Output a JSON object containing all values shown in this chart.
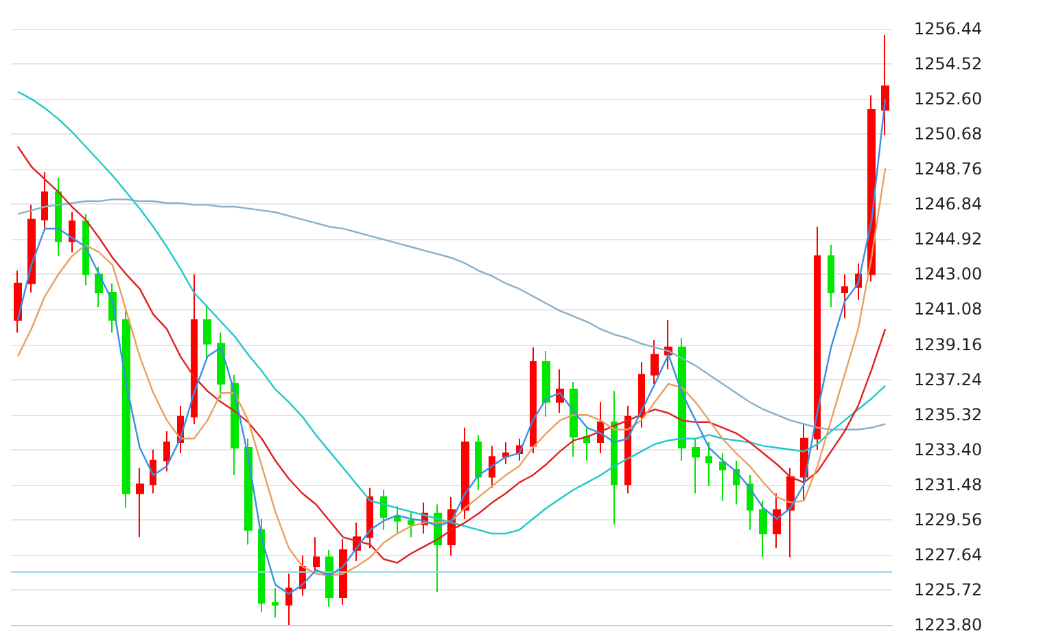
{
  "chart_data": {
    "type": "candlestick",
    "tick_labels": "y",
    "grid": "y",
    "marker": "none",
    "categories": [
      null,
      null,
      null,
      null,
      null,
      null,
      null,
      null,
      null,
      null,
      null,
      null,
      null,
      null,
      null,
      null,
      null,
      null,
      null,
      null,
      null,
      null,
      null,
      null,
      null,
      null,
      null,
      null,
      null,
      null,
      null,
      null,
      null,
      null,
      null,
      null,
      null,
      null,
      null,
      null,
      null,
      null,
      null,
      null,
      null,
      null,
      null,
      null,
      null,
      null,
      null,
      null,
      null,
      null,
      null,
      null,
      null,
      null,
      null,
      null,
      null,
      null,
      null,
      null,
      null
    ],
    "ylim": [
      1223.8,
      1256.44
    ],
    "yticks": [
      {
        "value": 1223.8,
        "label": "1223.80"
      },
      1225.72,
      1227.64,
      1229.56,
      1231.48,
      {
        "value": 1233.4,
        "label": "1233.40"
      },
      1235.32,
      1237.24,
      1239.16,
      1241.08,
      {
        "value": 1243,
        "label": "1243.00"
      },
      1244.92,
      1246.84,
      1248.76,
      1250.68,
      {
        "value": 1252.6,
        "label": "1252.60"
      },
      1254.52,
      1256.44
    ],
    "ref_lines": [
      {
        "axis": "y",
        "value": 1226.68,
        "color": "#8fd8e0"
      }
    ],
    "ohlc": [
      [
        1240.5,
        1243.2,
        1239.8,
        1242.5
      ],
      [
        1242.5,
        1246.8,
        1242.0,
        1246.0
      ],
      [
        1246.0,
        1248.6,
        1245.4,
        1247.5
      ],
      [
        1247.5,
        1248.3,
        1244.0,
        1244.8
      ],
      [
        1244.8,
        1246.4,
        1244.2,
        1245.9
      ],
      [
        1245.9,
        1246.3,
        1242.4,
        1243.0
      ],
      [
        1243.0,
        1243.4,
        1241.2,
        1242.0
      ],
      [
        1242.0,
        1242.5,
        1239.8,
        1240.5
      ],
      [
        1240.5,
        1241.0,
        1230.2,
        1231.0
      ],
      [
        1231.0,
        1232.4,
        1228.6,
        1231.5
      ],
      [
        1231.5,
        1233.4,
        1231.0,
        1232.8
      ],
      [
        1232.8,
        1234.4,
        1232.2,
        1233.8
      ],
      [
        1233.8,
        1235.8,
        1233.2,
        1235.2
      ],
      [
        1235.2,
        1243.0,
        1234.8,
        1240.5
      ],
      [
        1240.5,
        1241.3,
        1238.4,
        1239.2
      ],
      [
        1239.2,
        1239.8,
        1236.2,
        1237.0
      ],
      [
        1237.0,
        1237.5,
        1232.0,
        1233.5
      ],
      [
        1233.5,
        1234.0,
        1228.2,
        1229.0
      ],
      [
        1229.0,
        1229.6,
        1224.5,
        1225.0
      ],
      [
        1225.0,
        1225.8,
        1224.2,
        1224.9
      ],
      [
        1224.9,
        1226.6,
        1223.8,
        1225.8
      ],
      [
        1225.8,
        1227.6,
        1225.4,
        1227.0
      ],
      [
        1227.0,
        1228.6,
        1226.6,
        1227.5
      ],
      [
        1227.5,
        1227.9,
        1224.8,
        1225.3
      ],
      [
        1225.3,
        1228.5,
        1224.9,
        1227.9
      ],
      [
        1227.9,
        1229.4,
        1227.3,
        1228.6
      ],
      [
        1228.6,
        1231.3,
        1228.0,
        1230.8
      ],
      [
        1230.8,
        1231.2,
        1229.0,
        1229.7
      ],
      [
        1229.7,
        1230.3,
        1228.8,
        1229.5
      ],
      [
        1229.5,
        1230.0,
        1228.6,
        1229.3
      ],
      [
        1229.3,
        1230.5,
        1228.8,
        1229.9
      ],
      [
        1229.9,
        1230.4,
        1225.6,
        1228.2
      ],
      [
        1228.2,
        1230.8,
        1227.6,
        1230.1
      ],
      [
        1230.1,
        1234.6,
        1229.6,
        1233.8
      ],
      [
        1233.8,
        1234.2,
        1231.2,
        1231.9
      ],
      [
        1231.9,
        1233.6,
        1231.3,
        1233.0
      ],
      [
        1233.0,
        1233.8,
        1232.6,
        1233.2
      ],
      [
        1233.2,
        1234.0,
        1232.8,
        1233.6
      ],
      [
        1233.6,
        1239.0,
        1233.2,
        1238.2
      ],
      [
        1238.2,
        1238.8,
        1235.2,
        1236.0
      ],
      [
        1236.0,
        1237.8,
        1235.4,
        1236.7
      ],
      [
        1236.7,
        1237.1,
        1233.0,
        1234.1
      ],
      [
        1234.1,
        1234.6,
        1232.8,
        1233.8
      ],
      [
        1233.8,
        1236.0,
        1233.2,
        1234.9
      ],
      [
        1234.9,
        1236.6,
        1229.3,
        1231.5
      ],
      [
        1231.5,
        1235.8,
        1231.0,
        1235.2
      ],
      [
        1235.2,
        1238.2,
        1234.6,
        1237.5
      ],
      [
        1237.5,
        1239.4,
        1237.0,
        1238.6
      ],
      [
        1238.6,
        1240.5,
        1237.8,
        1239.0
      ],
      [
        1239.0,
        1239.5,
        1232.8,
        1233.5
      ],
      [
        1233.5,
        1234.0,
        1231.0,
        1233.0
      ],
      [
        1233.0,
        1233.8,
        1231.4,
        1232.7
      ],
      [
        1232.7,
        1233.2,
        1230.6,
        1232.3
      ],
      [
        1232.3,
        1232.8,
        1230.4,
        1231.5
      ],
      [
        1231.5,
        1232.0,
        1229.0,
        1230.1
      ],
      [
        1230.1,
        1230.6,
        1227.5,
        1228.8
      ],
      [
        1228.8,
        1231.0,
        1228.0,
        1230.1
      ],
      [
        1230.1,
        1232.4,
        1227.5,
        1231.9
      ],
      [
        1231.9,
        1234.8,
        1230.6,
        1234.0
      ],
      [
        1234.0,
        1245.6,
        1233.4,
        1244.0
      ],
      [
        1244.0,
        1244.6,
        1241.2,
        1242.0
      ],
      [
        1242.0,
        1243.0,
        1240.6,
        1242.3
      ],
      [
        1242.3,
        1243.6,
        1241.6,
        1243.0
      ],
      [
        1243.0,
        1252.8,
        1242.6,
        1252.0
      ],
      [
        1252.0,
        1256.1,
        1250.6,
        1253.3
      ]
    ],
    "colors": [
      "#ff0000",
      "#ff0000",
      "#ff0000",
      "#00e600",
      "#ff0000",
      "#00e600",
      "#00e600",
      "#00e600",
      "#00e600",
      "#ff0000",
      "#ff0000",
      "#ff0000",
      "#ff0000",
      "#ff0000",
      "#00e600",
      "#00e600",
      "#00e600",
      "#00e600",
      "#00e600",
      "#00e600",
      "#ff0000",
      "#ff0000",
      "#ff0000",
      "#00e600",
      "#ff0000",
      "#ff0000",
      "#ff0000",
      "#00e600",
      "#00e600",
      "#00e600",
      "#ff0000",
      "#00e600",
      "#ff0000",
      "#ff0000",
      "#00e600",
      "#ff0000",
      "#ff0000",
      "#ff0000",
      "#ff0000",
      "#00e600",
      "#ff0000",
      "#00e600",
      "#00e600",
      "#ff0000",
      "#00e600",
      "#ff0000",
      "#ff0000",
      "#ff0000",
      "#ff0000",
      "#00e600",
      "#00e600",
      "#00e600",
      "#00e600",
      "#00e600",
      "#00e600",
      "#00e600",
      "#ff0000",
      "#ff0000",
      "#ff0000",
      "#ff0000",
      "#00e600",
      "#ff0000",
      "#ff0000",
      "#ff0000",
      "#ff0000"
    ],
    "series": [
      {
        "type": "line",
        "color": "#8ab0c8",
        "values": [
          1246.3,
          1246.5,
          1246.7,
          1246.8,
          1246.9,
          1247.0,
          1247.0,
          1247.1,
          1247.1,
          1247.0,
          1247.0,
          1246.9,
          1246.9,
          1246.8,
          1246.8,
          1246.7,
          1246.7,
          1246.6,
          1246.5,
          1246.4,
          1246.2,
          1246.0,
          1245.8,
          1245.6,
          1245.5,
          1245.3,
          1245.1,
          1244.9,
          1244.7,
          1244.5,
          1244.3,
          1244.1,
          1243.9,
          1243.6,
          1243.2,
          1242.9,
          1242.5,
          1242.2,
          1241.8,
          1241.4,
          1241.0,
          1240.7,
          1240.4,
          1240.0,
          1239.7,
          1239.5,
          1239.2,
          1239.0,
          1238.8,
          1238.4,
          1238.0,
          1237.5,
          1237.0,
          1236.5,
          1236.0,
          1235.6,
          1235.3,
          1235.0,
          1234.8,
          1234.6,
          1234.5,
          1234.5,
          1234.5,
          1234.6,
          1234.8
        ]
      },
      {
        "type": "line",
        "color": "#20c8c8",
        "values": [
          1253.0,
          1252.6,
          1252.1,
          1251.5,
          1250.8,
          1250.0,
          1249.2,
          1248.4,
          1247.5,
          1246.6,
          1245.6,
          1244.5,
          1243.3,
          1242.0,
          1241.2,
          1240.4,
          1239.6,
          1238.6,
          1237.7,
          1236.7,
          1236.0,
          1235.2,
          1234.2,
          1233.3,
          1232.4,
          1231.5,
          1230.6,
          1230.4,
          1230.2,
          1230.0,
          1229.8,
          1229.6,
          1229.4,
          1229.2,
          1229.0,
          1228.8,
          1228.8,
          1229.0,
          1229.6,
          1230.2,
          1230.7,
          1231.2,
          1231.6,
          1232.0,
          1232.5,
          1232.9,
          1233.3,
          1233.7,
          1233.9,
          1234.0,
          1234.0,
          1234.2,
          1234.0,
          1233.9,
          1233.8,
          1233.6,
          1233.5,
          1233.4,
          1233.3,
          1233.7,
          1234.4,
          1235.0,
          1235.6,
          1236.2,
          1236.9
        ]
      },
      {
        "type": "line",
        "color": "#e02020",
        "values": [
          1250.0,
          1248.9,
          1248.2,
          1247.5,
          1246.7,
          1246.0,
          1245.0,
          1243.9,
          1243.0,
          1242.2,
          1240.8,
          1240.0,
          1238.5,
          1237.4,
          1236.6,
          1236.0,
          1235.5,
          1234.9,
          1234.0,
          1232.8,
          1231.8,
          1231.0,
          1230.4,
          1229.5,
          1228.6,
          1228.4,
          1228.2,
          1227.4,
          1227.2,
          1227.7,
          1228.1,
          1228.5,
          1229.0,
          1229.4,
          1229.9,
          1230.5,
          1231.0,
          1231.6,
          1232.0,
          1232.6,
          1233.3,
          1233.9,
          1234.1,
          1234.4,
          1234.7,
          1235.0,
          1235.3,
          1235.6,
          1235.4,
          1235.0,
          1234.9,
          1234.9,
          1234.6,
          1234.3,
          1233.8,
          1233.2,
          1232.6,
          1231.9,
          1231.6,
          1232.2,
          1233.3,
          1234.4,
          1235.8,
          1237.8,
          1240.0
        ]
      },
      {
        "type": "line",
        "color": "#e8a060",
        "values": [
          1238.5,
          1240.0,
          1241.8,
          1243.0,
          1244.0,
          1244.6,
          1244.2,
          1243.5,
          1241.0,
          1238.5,
          1236.5,
          1235.0,
          1234.0,
          1234.0,
          1235.0,
          1236.5,
          1236.5,
          1235.0,
          1232.5,
          1230.0,
          1228.0,
          1227.0,
          1226.6,
          1226.5,
          1226.6,
          1227.0,
          1227.5,
          1228.3,
          1228.8,
          1229.2,
          1229.4,
          1229.4,
          1229.5,
          1230.2,
          1230.8,
          1231.4,
          1232.0,
          1232.5,
          1233.5,
          1234.3,
          1235.0,
          1235.3,
          1235.3,
          1235.0,
          1234.5,
          1234.5,
          1235.0,
          1236.0,
          1237.0,
          1236.8,
          1236.0,
          1235.0,
          1234.0,
          1233.2,
          1232.5,
          1231.6,
          1230.8,
          1230.5,
          1230.6,
          1232.5,
          1235.0,
          1237.5,
          1240.0,
          1244.0,
          1248.8
        ]
      },
      {
        "type": "line",
        "color": "#3a8ee6",
        "values": [
          1240.5,
          1243.5,
          1245.5,
          1245.5,
          1245.0,
          1244.5,
          1243.0,
          1241.5,
          1237.0,
          1233.5,
          1232.0,
          1232.5,
          1234.0,
          1236.5,
          1238.5,
          1239.0,
          1236.5,
          1233.0,
          1228.5,
          1226.0,
          1225.5,
          1226.0,
          1226.8,
          1226.5,
          1227.0,
          1228.0,
          1229.0,
          1229.5,
          1229.8,
          1229.6,
          1229.5,
          1229.2,
          1229.5,
          1231.0,
          1232.0,
          1232.5,
          1233.0,
          1233.2,
          1235.0,
          1236.2,
          1236.5,
          1235.5,
          1234.6,
          1234.3,
          1233.8,
          1234.0,
          1235.5,
          1237.0,
          1238.6,
          1236.5,
          1235.0,
          1233.5,
          1232.8,
          1232.2,
          1231.3,
          1230.2,
          1229.6,
          1230.2,
          1231.5,
          1235.5,
          1239.0,
          1241.5,
          1242.5,
          1246.0,
          1252.6
        ]
      }
    ]
  }
}
